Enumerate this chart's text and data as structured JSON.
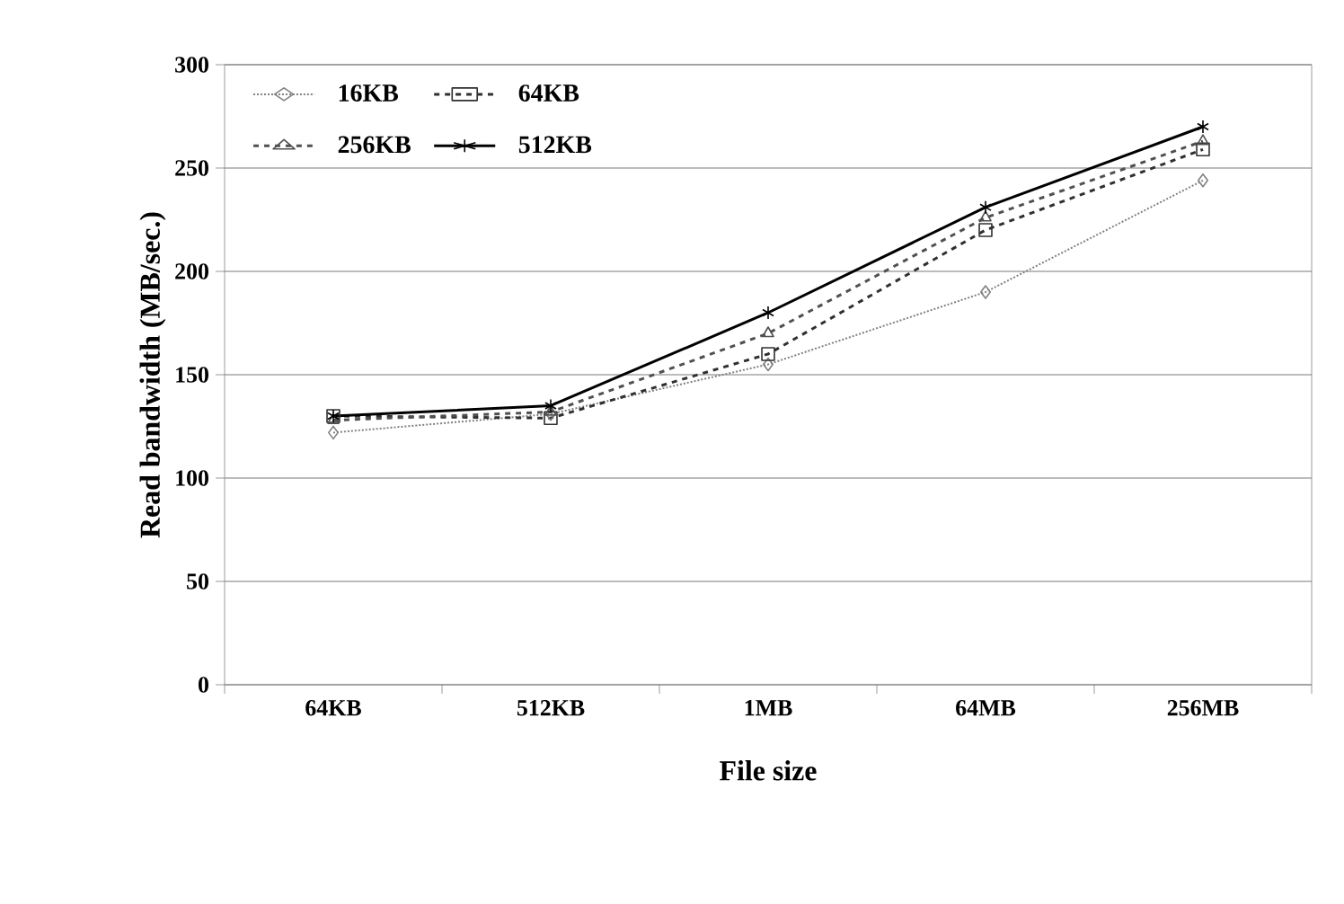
{
  "chart_data": {
    "type": "line",
    "xlabel": "File size",
    "ylabel": "Read bandwidth (MB/sec.)",
    "categories": [
      "64KB",
      "512KB",
      "1MB",
      "64MB",
      "256MB"
    ],
    "series": [
      {
        "name": "16KB",
        "color": "#808080",
        "marker": "diamond",
        "line_style": "dotted",
        "values": [
          122,
          131,
          155,
          190,
          244
        ]
      },
      {
        "name": "64KB",
        "color": "#303030",
        "marker": "square",
        "line_style": "dashed",
        "values": [
          130,
          129,
          160,
          220,
          259
        ]
      },
      {
        "name": "256KB",
        "color": "#505050",
        "marker": "triangle",
        "line_style": "dashed",
        "values": [
          128,
          132,
          170,
          226,
          263
        ]
      },
      {
        "name": "512KB",
        "color": "#000000",
        "marker": "cross",
        "line_style": "solid",
        "values": [
          130,
          135,
          180,
          231,
          270
        ]
      }
    ],
    "ylim": [
      0,
      300
    ],
    "yticks": [
      0,
      50,
      100,
      150,
      200,
      250,
      300
    ],
    "grid": "y",
    "legend": "top left"
  }
}
